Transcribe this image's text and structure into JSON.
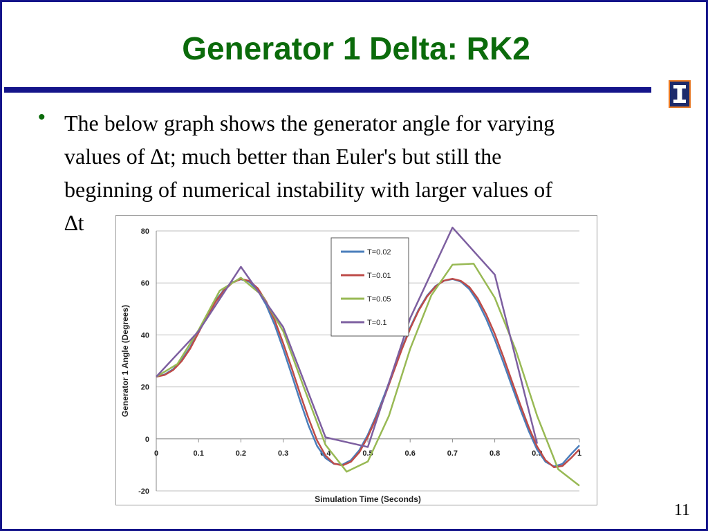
{
  "slide": {
    "title": "Generator 1 Delta: RK2",
    "bullet_lines": [
      "The below graph shows the generator angle for varying",
      "values of ∆t; much better than Euler's but still the",
      "beginning of numerical instability with larger values of",
      "∆t"
    ],
    "page_number": "11",
    "logo_letter": "I",
    "colors": {
      "title": "#0b6b0b",
      "rule": "#14148a",
      "logo_bg": "#1d2a6b",
      "logo_border": "#e87722"
    }
  },
  "chart_data": {
    "type": "line",
    "xlabel": "Simulation Time (Seconds)",
    "ylabel": "Generator 1 Angle (Degrees)",
    "xlim": [
      0,
      1
    ],
    "ylim": [
      -20,
      80
    ],
    "xticks": [
      0,
      0.1,
      0.2,
      0.3,
      0.4,
      0.5,
      0.6,
      0.7,
      0.8,
      0.9,
      1
    ],
    "xtick_labels": [
      "0",
      "0.1",
      "0.2",
      "0.3",
      "0.4",
      "0.5",
      "0.6",
      "0.7",
      "0.8",
      "0.9",
      "1"
    ],
    "yticks": [
      -20,
      0,
      20,
      40,
      60,
      80
    ],
    "ytick_labels": [
      "-20",
      "0",
      "20",
      "40",
      "60",
      "80"
    ],
    "grid": "horizontal",
    "legend": "top-center",
    "series": [
      {
        "name": "T=0.02",
        "color": "#4a7ebb",
        "x": [
          0,
          0.02,
          0.04,
          0.06,
          0.08,
          0.1,
          0.12,
          0.14,
          0.16,
          0.18,
          0.2,
          0.22,
          0.24,
          0.26,
          0.28,
          0.3,
          0.32,
          0.34,
          0.36,
          0.38,
          0.4,
          0.42,
          0.44,
          0.46,
          0.48,
          0.5,
          0.52,
          0.54,
          0.56,
          0.58,
          0.6,
          0.62,
          0.64,
          0.66,
          0.68,
          0.7,
          0.72,
          0.74,
          0.76,
          0.78,
          0.8,
          0.82,
          0.84,
          0.86,
          0.88,
          0.9,
          0.92,
          0.94,
          0.96,
          0.98,
          1
        ],
        "y": [
          23.9,
          24.8,
          26.8,
          30.3,
          35.2,
          41.4,
          47.6,
          53.1,
          57.4,
          60.3,
          61.4,
          60.4,
          57.1,
          51.5,
          43.8,
          34.6,
          24.8,
          14.6,
          5.1,
          -2.7,
          -7.4,
          -9.6,
          -9.9,
          -8.2,
          -4.3,
          1.6,
          9.0,
          17.3,
          26.0,
          34.8,
          42.8,
          49.7,
          55.1,
          58.8,
          60.8,
          61.5,
          60.5,
          57.6,
          52.7,
          46.1,
          38.3,
          29.6,
          20.5,
          11.6,
          3.1,
          -4.1,
          -8.8,
          -10.6,
          -9.6,
          -5.9,
          -2.5
        ]
      },
      {
        "name": "T=0.01",
        "color": "#be4b48",
        "x": [
          0,
          0.02,
          0.04,
          0.06,
          0.08,
          0.1,
          0.12,
          0.14,
          0.16,
          0.18,
          0.2,
          0.22,
          0.24,
          0.26,
          0.28,
          0.3,
          0.32,
          0.34,
          0.36,
          0.38,
          0.4,
          0.42,
          0.44,
          0.46,
          0.48,
          0.5,
          0.52,
          0.54,
          0.56,
          0.58,
          0.6,
          0.62,
          0.64,
          0.66,
          0.68,
          0.7,
          0.72,
          0.74,
          0.76,
          0.78,
          0.8,
          0.82,
          0.84,
          0.86,
          0.88,
          0.9,
          0.92,
          0.94,
          0.96,
          0.98,
          1
        ],
        "y": [
          23.9,
          24.6,
          26.5,
          29.9,
          34.7,
          40.9,
          47.1,
          52.7,
          57.1,
          60.1,
          61.5,
          60.8,
          57.9,
          52.8,
          45.6,
          36.8,
          27.3,
          17.3,
          7.9,
          -0.6,
          -6.4,
          -9.5,
          -10.2,
          -8.8,
          -5.1,
          0.8,
          8.1,
          16.5,
          25.4,
          34.3,
          42.4,
          49.3,
          54.8,
          58.6,
          60.9,
          61.6,
          60.8,
          58.4,
          54.0,
          47.8,
          40.4,
          31.7,
          22.4,
          13.3,
          4.6,
          -2.9,
          -8.2,
          -10.9,
          -10.4,
          -7.4,
          -4.0
        ]
      },
      {
        "name": "T=0.05",
        "color": "#98b954",
        "x": [
          0,
          0.05,
          0.1,
          0.15,
          0.2,
          0.25,
          0.3,
          0.35,
          0.4,
          0.45,
          0.5,
          0.55,
          0.6,
          0.65,
          0.7,
          0.75,
          0.8,
          0.85,
          0.9,
          0.95,
          1
        ],
        "y": [
          23.9,
          28.8,
          41.9,
          57.0,
          62.0,
          55.2,
          41.4,
          19.3,
          -2.3,
          -12.6,
          -8.7,
          8.9,
          34.6,
          55.2,
          67.0,
          67.4,
          54.3,
          34.0,
          8.9,
          -11.7,
          -18.0
        ]
      },
      {
        "name": "T=0.1",
        "color": "#7d5fa0",
        "x": [
          0,
          0.1,
          0.2,
          0.3,
          0.4,
          0.5,
          0.6,
          0.7,
          0.8,
          0.9
        ],
        "y": [
          23.9,
          41.4,
          66.2,
          43.0,
          0.6,
          -3.1,
          46.4,
          81.3,
          63.2,
          -1.8
        ]
      }
    ]
  }
}
